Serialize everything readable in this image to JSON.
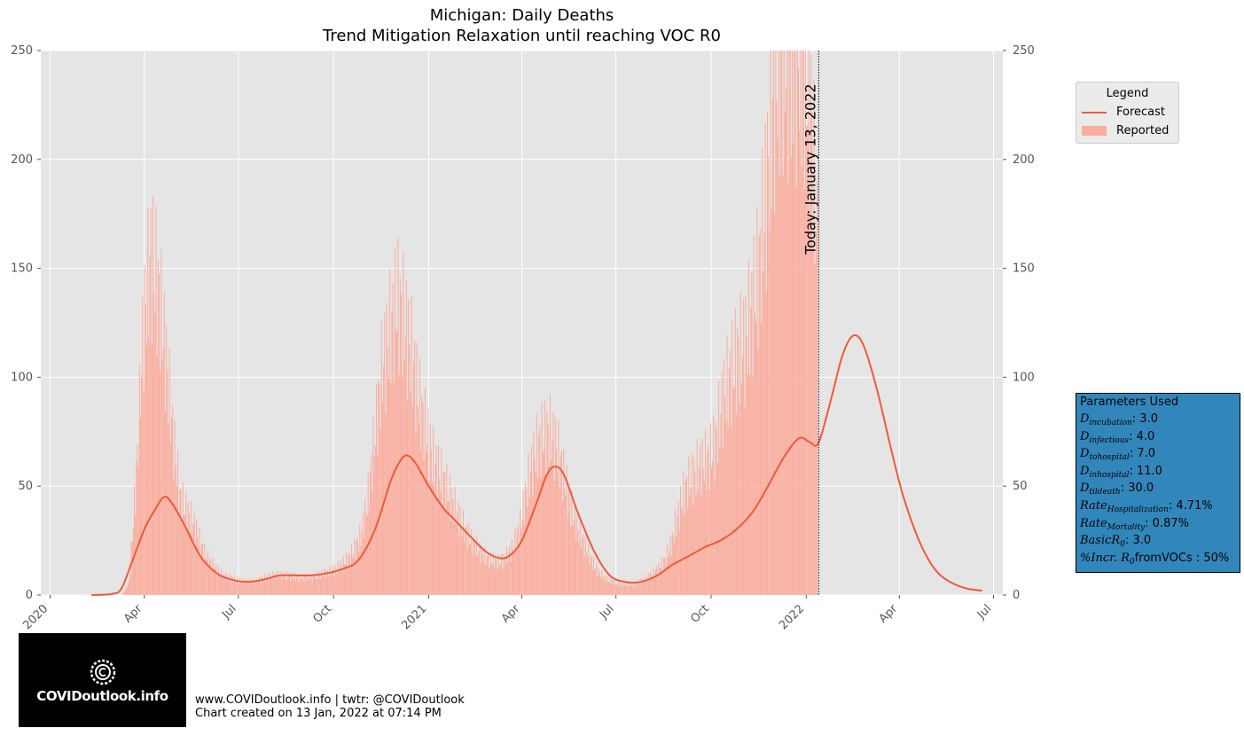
{
  "title": "Michigan: Daily Deaths",
  "subtitle": "Trend Mitigation Relaxation until reaching VOC R0",
  "today_label": "Today: January 13, 2022",
  "legend": {
    "title": "Legend",
    "items": [
      {
        "label": "Forecast",
        "color": "#f05a3a"
      },
      {
        "label": "Reported",
        "color": "#fcac9c"
      }
    ]
  },
  "parameters": {
    "heading": "Parameters Used",
    "lines": [
      {
        "sym": "D",
        "sub": "incubation",
        "val": ": 3.0"
      },
      {
        "sym": "D",
        "sub": "infectious",
        "val": ": 4.0"
      },
      {
        "sym": "D",
        "sub": "tohospital",
        "val": ": 7.0"
      },
      {
        "sym": "D",
        "sub": "inhospital",
        "val": ": 11.0"
      },
      {
        "sym": "D",
        "sub": "tildeath",
        "val": ": 30.0"
      },
      {
        "sym": "Rate",
        "sub": "Hospitalization",
        "val": ": 4.71%"
      },
      {
        "sym": "Rate",
        "sub": "Mortality",
        "val": ": 0.87%"
      },
      {
        "sym": "BasicR",
        "sub": "0",
        "val": ": 3.0"
      },
      {
        "sym": "%Incr. R",
        "sub": "0",
        "val": "fromVOCs : 50%"
      }
    ]
  },
  "footer": {
    "line1": "www.COVIDoutlook.info | twtr: @COVIDoutlook",
    "line2": "Chart created on 13 Jan, 2022 at 07:14 PM"
  },
  "logo": {
    "text": "COVIDoutlook.info"
  },
  "colors": {
    "forecast": "#f05a3a",
    "reported": "#fcac9c",
    "plot_bg": "#e5e5e5",
    "grid": "#ffffff",
    "param_box": "#3187bb"
  },
  "chart_data": {
    "type": "bar",
    "x_unit": "date",
    "x_range": [
      "2019-12-23",
      "2022-07-10"
    ],
    "ylim": [
      0,
      250
    ],
    "y_ticks": [
      0,
      50,
      100,
      150,
      200,
      250
    ],
    "x_ticks": [
      {
        "date": "2020-01-01",
        "label": "2020"
      },
      {
        "date": "2020-04-01",
        "label": "Apr"
      },
      {
        "date": "2020-07-01",
        "label": "Jul"
      },
      {
        "date": "2020-10-01",
        "label": "Oct"
      },
      {
        "date": "2021-01-01",
        "label": "2021"
      },
      {
        "date": "2021-04-01",
        "label": "Apr"
      },
      {
        "date": "2021-07-01",
        "label": "Jul"
      },
      {
        "date": "2021-10-01",
        "label": "Oct"
      },
      {
        "date": "2022-01-01",
        "label": "2022"
      },
      {
        "date": "2022-04-01",
        "label": "Apr"
      },
      {
        "date": "2022-07-01",
        "label": "Jul"
      }
    ],
    "today": "2022-01-13",
    "grid": true,
    "legend_position": "outside-right-top",
    "series": [
      {
        "name": "Reported",
        "kind": "bar",
        "weekly_points": [
          [
            "2020-03-10",
            0
          ],
          [
            "2020-03-17",
            6
          ],
          [
            "2020-03-24",
            55
          ],
          [
            "2020-03-31",
            125
          ],
          [
            "2020-04-07",
            155
          ],
          [
            "2020-04-14",
            140
          ],
          [
            "2020-04-21",
            112
          ],
          [
            "2020-04-28",
            75
          ],
          [
            "2020-05-05",
            45
          ],
          [
            "2020-05-12",
            38
          ],
          [
            "2020-05-19",
            32
          ],
          [
            "2020-05-26",
            22
          ],
          [
            "2020-06-02",
            16
          ],
          [
            "2020-06-09",
            12
          ],
          [
            "2020-06-16",
            9
          ],
          [
            "2020-06-23",
            8
          ],
          [
            "2020-06-30",
            7
          ],
          [
            "2020-07-07",
            6
          ],
          [
            "2020-07-14",
            6
          ],
          [
            "2020-07-21",
            7
          ],
          [
            "2020-07-28",
            8
          ],
          [
            "2020-08-04",
            9
          ],
          [
            "2020-08-11",
            9
          ],
          [
            "2020-08-18",
            9
          ],
          [
            "2020-08-25",
            8
          ],
          [
            "2020-09-01",
            8
          ],
          [
            "2020-09-08",
            8
          ],
          [
            "2020-09-15",
            9
          ],
          [
            "2020-09-22",
            10
          ],
          [
            "2020-09-29",
            11
          ],
          [
            "2020-10-06",
            13
          ],
          [
            "2020-10-13",
            16
          ],
          [
            "2020-10-20",
            20
          ],
          [
            "2020-10-27",
            27
          ],
          [
            "2020-11-03",
            45
          ],
          [
            "2020-11-10",
            75
          ],
          [
            "2020-11-17",
            105
          ],
          [
            "2020-11-24",
            120
          ],
          [
            "2020-12-01",
            135
          ],
          [
            "2020-12-08",
            125
          ],
          [
            "2020-12-15",
            110
          ],
          [
            "2020-12-22",
            90
          ],
          [
            "2020-12-29",
            75
          ],
          [
            "2021-01-05",
            62
          ],
          [
            "2021-01-12",
            55
          ],
          [
            "2021-01-19",
            48
          ],
          [
            "2021-01-26",
            40
          ],
          [
            "2021-02-02",
            32
          ],
          [
            "2021-02-09",
            26
          ],
          [
            "2021-02-16",
            22
          ],
          [
            "2021-02-23",
            18
          ],
          [
            "2021-03-02",
            16
          ],
          [
            "2021-03-09",
            15
          ],
          [
            "2021-03-16",
            17
          ],
          [
            "2021-03-23",
            22
          ],
          [
            "2021-03-30",
            32
          ],
          [
            "2021-04-06",
            50
          ],
          [
            "2021-04-13",
            65
          ],
          [
            "2021-04-20",
            72
          ],
          [
            "2021-04-27",
            75
          ],
          [
            "2021-05-04",
            68
          ],
          [
            "2021-05-11",
            55
          ],
          [
            "2021-05-18",
            40
          ],
          [
            "2021-05-25",
            30
          ],
          [
            "2021-06-01",
            22
          ],
          [
            "2021-06-08",
            15
          ],
          [
            "2021-06-15",
            10
          ],
          [
            "2021-06-22",
            7
          ],
          [
            "2021-06-29",
            6
          ],
          [
            "2021-07-06",
            5
          ],
          [
            "2021-07-13",
            5
          ],
          [
            "2021-07-20",
            5
          ],
          [
            "2021-07-27",
            7
          ],
          [
            "2021-08-03",
            9
          ],
          [
            "2021-08-10",
            12
          ],
          [
            "2021-08-17",
            16
          ],
          [
            "2021-08-24",
            25
          ],
          [
            "2021-08-31",
            40
          ],
          [
            "2021-09-07",
            50
          ],
          [
            "2021-09-14",
            55
          ],
          [
            "2021-09-21",
            60
          ],
          [
            "2021-09-28",
            62
          ],
          [
            "2021-10-05",
            70
          ],
          [
            "2021-10-12",
            90
          ],
          [
            "2021-10-19",
            100
          ],
          [
            "2021-10-26",
            110
          ],
          [
            "2021-11-02",
            115
          ],
          [
            "2021-11-09",
            130
          ],
          [
            "2021-11-16",
            150
          ],
          [
            "2021-11-23",
            185
          ],
          [
            "2021-11-30",
            230
          ],
          [
            "2021-12-07",
            250
          ],
          [
            "2021-12-14",
            250
          ],
          [
            "2021-12-21",
            250
          ],
          [
            "2021-12-28",
            250
          ],
          [
            "2022-01-04",
            230
          ],
          [
            "2022-01-11",
            160
          ]
        ]
      },
      {
        "name": "Forecast",
        "kind": "line",
        "points": [
          [
            "2020-02-10",
            0
          ],
          [
            "2020-03-01",
            0.5
          ],
          [
            "2020-03-10",
            3
          ],
          [
            "2020-03-20",
            15
          ],
          [
            "2020-04-01",
            30
          ],
          [
            "2020-04-10",
            38
          ],
          [
            "2020-04-20",
            45
          ],
          [
            "2020-04-28",
            42
          ],
          [
            "2020-05-10",
            32
          ],
          [
            "2020-05-25",
            18
          ],
          [
            "2020-06-10",
            10
          ],
          [
            "2020-06-25",
            7
          ],
          [
            "2020-07-10",
            6
          ],
          [
            "2020-07-25",
            7
          ],
          [
            "2020-08-10",
            9
          ],
          [
            "2020-08-25",
            9
          ],
          [
            "2020-09-10",
            9
          ],
          [
            "2020-09-25",
            10
          ],
          [
            "2020-10-10",
            12
          ],
          [
            "2020-10-25",
            16
          ],
          [
            "2020-11-10",
            30
          ],
          [
            "2020-11-25",
            52
          ],
          [
            "2020-12-05",
            62
          ],
          [
            "2020-12-12",
            64
          ],
          [
            "2020-12-20",
            60
          ],
          [
            "2021-01-01",
            50
          ],
          [
            "2021-01-15",
            40
          ],
          [
            "2021-01-25",
            35
          ],
          [
            "2021-02-10",
            27
          ],
          [
            "2021-02-25",
            20
          ],
          [
            "2021-03-10",
            17
          ],
          [
            "2021-03-20",
            18
          ],
          [
            "2021-04-01",
            25
          ],
          [
            "2021-04-15",
            42
          ],
          [
            "2021-04-25",
            55
          ],
          [
            "2021-05-03",
            59
          ],
          [
            "2021-05-12",
            55
          ],
          [
            "2021-05-25",
            38
          ],
          [
            "2021-06-10",
            20
          ],
          [
            "2021-06-25",
            9
          ],
          [
            "2021-07-10",
            6
          ],
          [
            "2021-07-25",
            6
          ],
          [
            "2021-08-10",
            9
          ],
          [
            "2021-08-25",
            14
          ],
          [
            "2021-09-10",
            18
          ],
          [
            "2021-09-25",
            22
          ],
          [
            "2021-10-10",
            25
          ],
          [
            "2021-10-25",
            30
          ],
          [
            "2021-11-10",
            38
          ],
          [
            "2021-11-25",
            50
          ],
          [
            "2021-12-10",
            63
          ],
          [
            "2021-12-25",
            72
          ],
          [
            "2022-01-05",
            70
          ],
          [
            "2022-01-13",
            70
          ],
          [
            "2022-01-25",
            90
          ],
          [
            "2022-02-05",
            110
          ],
          [
            "2022-02-15",
            119
          ],
          [
            "2022-02-25",
            115
          ],
          [
            "2022-03-10",
            95
          ],
          [
            "2022-03-25",
            65
          ],
          [
            "2022-04-05",
            45
          ],
          [
            "2022-04-20",
            25
          ],
          [
            "2022-05-05",
            12
          ],
          [
            "2022-05-20",
            6
          ],
          [
            "2022-06-05",
            3
          ],
          [
            "2022-06-20",
            2
          ]
        ]
      }
    ]
  }
}
